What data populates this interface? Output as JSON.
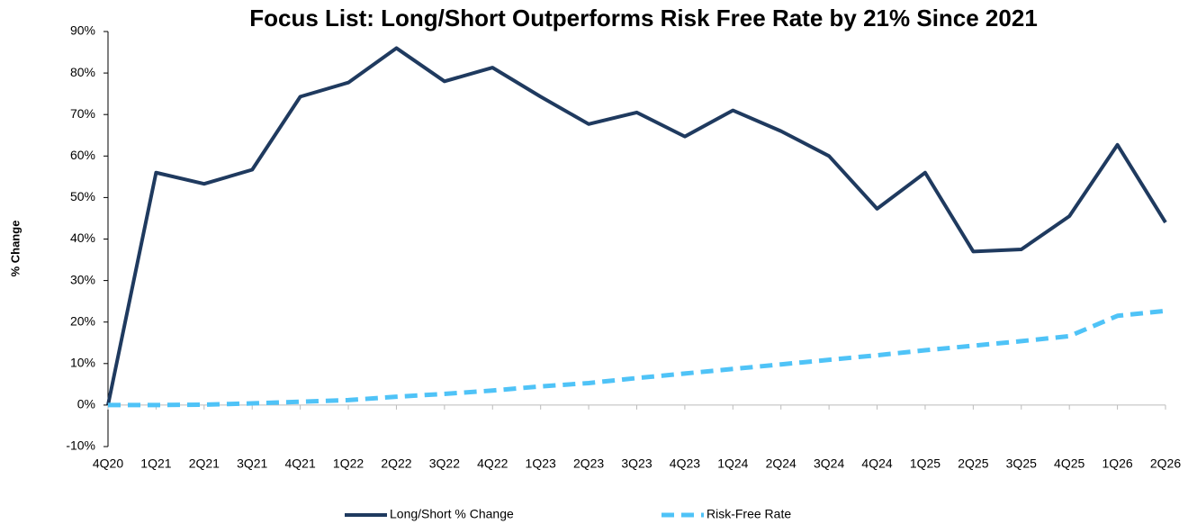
{
  "chart_data": {
    "type": "line",
    "title": "Focus List: Long/Short Outperforms Risk Free Rate by 21% Since 2021",
    "y_label": "% Change",
    "categories": [
      "4Q20",
      "1Q21",
      "2Q21",
      "3Q21",
      "4Q21",
      "1Q22",
      "2Q22",
      "3Q22",
      "4Q22",
      "1Q23",
      "2Q23",
      "3Q23",
      "4Q23",
      "1Q24",
      "2Q24",
      "3Q24",
      "4Q24",
      "1Q25",
      "2Q25",
      "3Q25",
      "4Q25",
      "1Q26",
      "2Q26"
    ],
    "series": [
      {
        "name": "Long/Short % Change",
        "color": "#1f3a5f",
        "dash": false,
        "values": [
          0,
          56,
          53.3,
          56.7,
          74.3,
          77.7,
          86,
          78,
          81.3,
          74.3,
          67.7,
          70.5,
          64.7,
          71,
          66,
          60,
          47.3,
          56,
          37,
          37.5,
          45.5,
          62.7,
          44
        ]
      },
      {
        "name": "Risk-Free Rate",
        "color": "#4fc3f7",
        "dash": true,
        "values": [
          0,
          0,
          0.1,
          0.4,
          0.8,
          1.2,
          2,
          2.7,
          3.5,
          4.5,
          5.3,
          6.5,
          7.6,
          8.7,
          9.8,
          10.9,
          12,
          13.2,
          14.3,
          15.4,
          16.6,
          21.5,
          22.7
        ]
      }
    ],
    "ylim": [
      -10,
      90
    ],
    "yticks": [
      {
        "value": -10,
        "label": "-10%"
      },
      {
        "value": 0,
        "label": "0%"
      },
      {
        "value": 10,
        "label": "10%"
      },
      {
        "value": 20,
        "label": "20%"
      },
      {
        "value": 30,
        "label": "30%"
      },
      {
        "value": 40,
        "label": "40%"
      },
      {
        "value": 50,
        "label": "50%"
      },
      {
        "value": 60,
        "label": "60%"
      },
      {
        "value": 70,
        "label": "70%"
      },
      {
        "value": 80,
        "label": "80%"
      },
      {
        "value": 90,
        "label": "90%"
      }
    ],
    "legend": "bottom"
  }
}
